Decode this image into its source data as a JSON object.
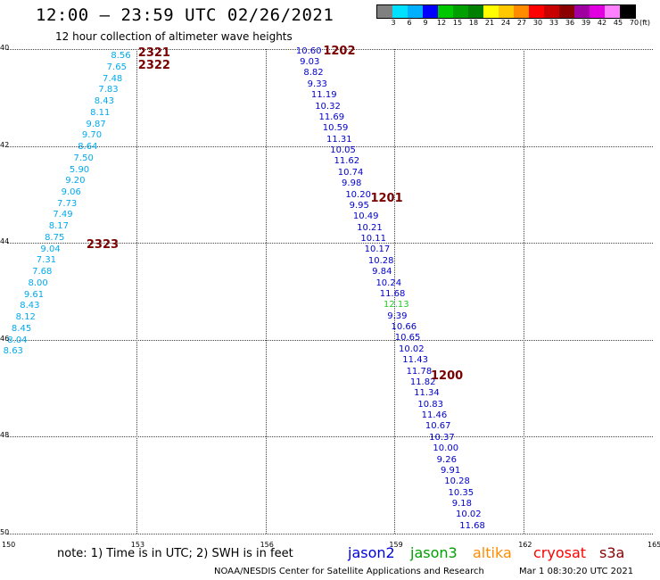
{
  "header": {
    "title": "12:00 – 23:59 UTC 02/26/2021",
    "subtitle": "12 hour collection of altimeter wave heights"
  },
  "color_scale": {
    "unit": "(ft)",
    "bins": [
      {
        "label": "3",
        "color": "#808080"
      },
      {
        "label": "6",
        "color": "#00e0ff"
      },
      {
        "label": "9",
        "color": "#00b0ff"
      },
      {
        "label": "12",
        "color": "#0000ff"
      },
      {
        "label": "15",
        "color": "#00c800"
      },
      {
        "label": "18",
        "color": "#00a000"
      },
      {
        "label": "21",
        "color": "#008000"
      },
      {
        "label": "24",
        "color": "#ffff00"
      },
      {
        "label": "27",
        "color": "#ffc800"
      },
      {
        "label": "30",
        "color": "#ff8c00"
      },
      {
        "label": "33",
        "color": "#ff0000"
      },
      {
        "label": "36",
        "color": "#c80000"
      },
      {
        "label": "39",
        "color": "#8b0000"
      },
      {
        "label": "42",
        "color": "#a000a0"
      },
      {
        "label": "45",
        "color": "#e000e0"
      },
      {
        "label": "70",
        "color": "#ff80ff"
      },
      {
        "label": "",
        "color": "#000000"
      }
    ]
  },
  "map": {
    "lon_ticks": [
      "150",
      "153",
      "156",
      "159",
      "162",
      "165"
    ],
    "lat_ticks": [
      "40",
      "42",
      "44",
      "46",
      "48",
      "50"
    ],
    "passes": [
      {
        "label": "2321",
        "lon": 153.0,
        "lat": 40.1
      },
      {
        "label": "2322",
        "lon": 153.0,
        "lat": 40.35
      },
      {
        "label": "2323",
        "lon": 151.8,
        "lat": 44.05
      },
      {
        "label": "1202",
        "lon": 157.3,
        "lat": 40.05
      },
      {
        "label": "1201",
        "lon": 158.4,
        "lat": 43.1
      },
      {
        "label": "1200",
        "lon": 159.8,
        "lat": 46.75
      }
    ],
    "tracks": [
      {
        "satellite": "altika",
        "color": "#00aaee",
        "start_lon": 152.7,
        "start_lat": 40.15,
        "end_lon": 150.2,
        "end_lat": 46.25,
        "values": [
          "8.56",
          "7.65",
          "7.48",
          "7.83",
          "8.43",
          "8.11",
          "9.87",
          "9.70",
          "8.64",
          "7.50",
          "5.90",
          "9.20",
          "9.06",
          "7.73",
          "7.49",
          "8.17",
          "8.75",
          "9.04",
          "7.31",
          "7.68",
          "8.00",
          "9.61",
          "8.43",
          "8.12",
          "8.45",
          "8.04",
          "8.63"
        ]
      },
      {
        "satellite": "jason2",
        "color": "#0000cc",
        "start_lon": 157.0,
        "start_lat": 40.05,
        "end_lon": 160.8,
        "end_lat": 49.85,
        "values": [
          "10.60",
          "9.03",
          "8.82",
          "9.33",
          "11.19",
          "10.32",
          "11.69",
          "10.59",
          "11.31",
          "10.05",
          "11.62",
          "10.74",
          "9.98",
          "10.20",
          "9.95",
          "10.49",
          "10.21",
          "10.11",
          "10.17",
          "10.28",
          "9.84",
          "10.24",
          "11.68",
          "12.13",
          "9.39",
          "10.66",
          "10.65",
          "10.02",
          "11.43",
          "11.78",
          "11.82",
          "11.34",
          "10.83",
          "11.46",
          "10.67",
          "10.37",
          "10.00",
          "9.26",
          "9.91",
          "10.28",
          "10.35",
          "9.18",
          "10.02",
          "11.68"
        ]
      }
    ]
  },
  "footer": {
    "note": "note:  1) Time is in UTC; 2) SWH is in feet",
    "legend": [
      {
        "name": "jason2",
        "color": "#0000dd"
      },
      {
        "name": "jason3",
        "color": "#00a000"
      },
      {
        "name": "altika",
        "color": "#ff8c00"
      },
      {
        "name": "cryosat",
        "color": "#ff0000"
      },
      {
        "name": "s3a",
        "color": "#8b0000"
      }
    ],
    "credit": "NOAA/NESDIS Center for Satellite Applications and Research",
    "timestamp": "Mar  1 08:30:20 UTC 2021"
  }
}
